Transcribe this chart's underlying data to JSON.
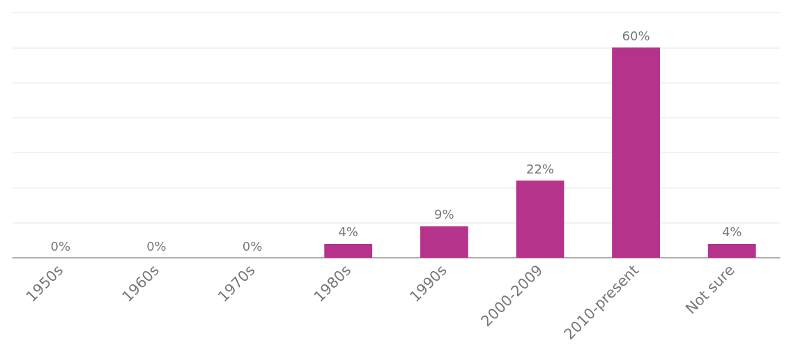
{
  "chart_data": {
    "type": "bar",
    "categories": [
      "1950s",
      "1960s",
      "1970s",
      "1980s",
      "1990s",
      "2000-2009",
      "2010-present",
      "Not sure"
    ],
    "values": [
      0,
      0,
      0,
      4,
      9,
      22,
      60,
      4
    ],
    "value_labels": [
      "0%",
      "0%",
      "0%",
      "4%",
      "9%",
      "22%",
      "60%",
      "4%"
    ],
    "color": "#b5338a",
    "ylim": [
      0,
      70
    ],
    "yticks": [
      {
        "value": 0,
        "label": null
      },
      {
        "value": 10,
        "label": null
      },
      {
        "value": 20,
        "label": null
      },
      {
        "value": 30,
        "label": null
      },
      {
        "value": 40,
        "label": null
      },
      {
        "value": 50,
        "label": null
      },
      {
        "value": 60,
        "label": null
      },
      {
        "value": 70,
        "label": null
      }
    ],
    "grid": "y",
    "tick_labels": "x"
  }
}
